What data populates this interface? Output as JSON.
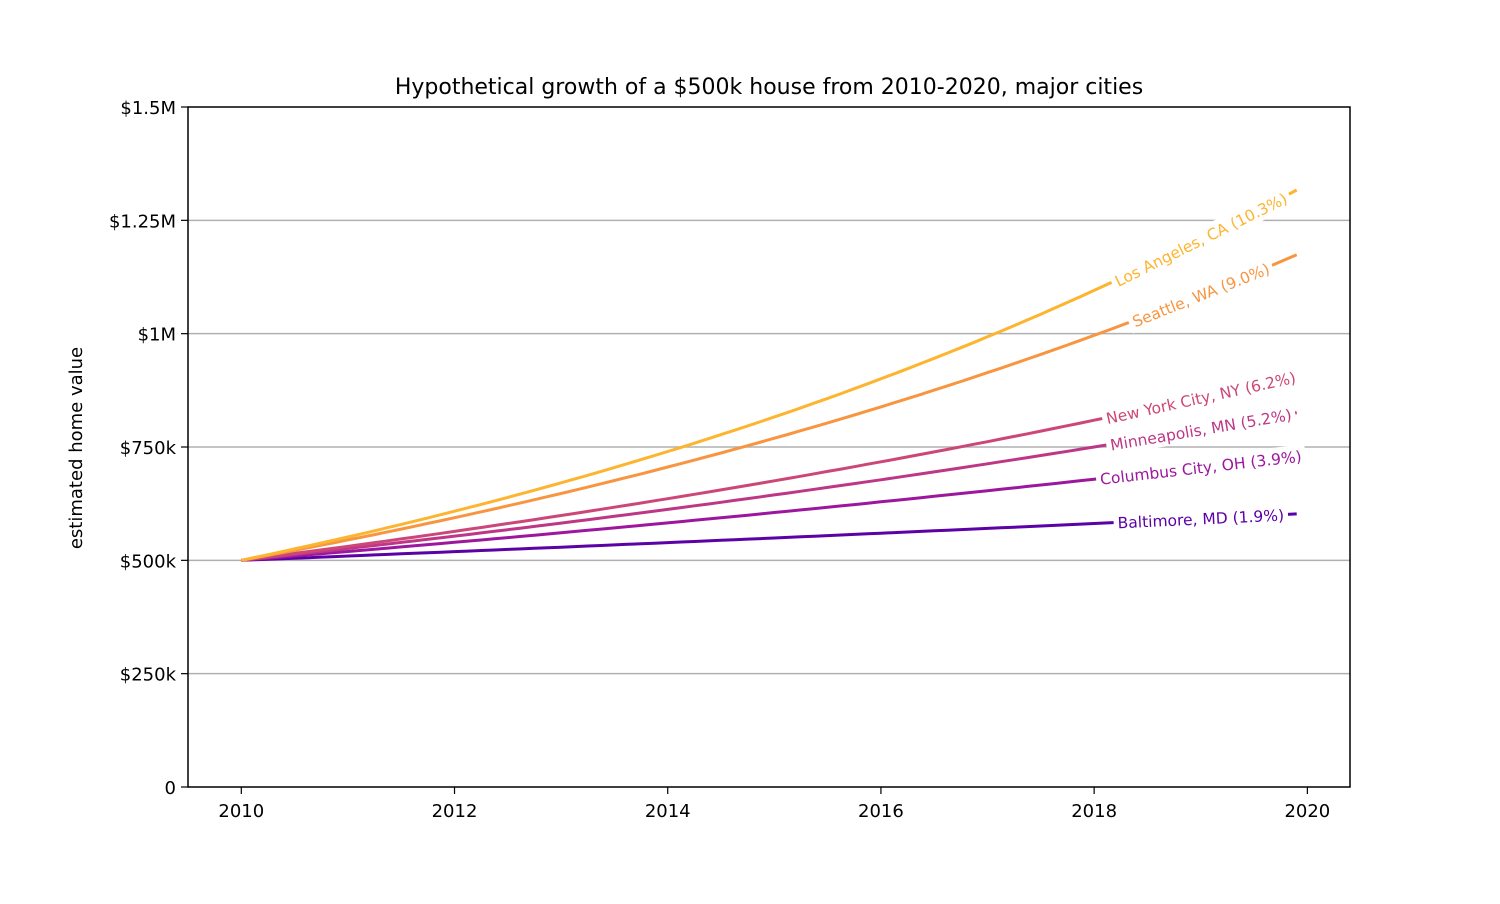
{
  "chart_data": {
    "type": "line",
    "title": "Hypothetical growth of a $500k house from 2010-2020, major cities",
    "xlabel": "",
    "ylabel": "estimated home value",
    "xlim": [
      2009.5,
      2020.4
    ],
    "ylim": [
      0,
      1500000
    ],
    "x_ticks": [
      2010,
      2012,
      2014,
      2016,
      2018,
      2020
    ],
    "x_tick_labels": [
      "2010",
      "2012",
      "2014",
      "2016",
      "2018",
      "2020"
    ],
    "y_ticks": [
      0,
      250000,
      500000,
      750000,
      1000000,
      1250000,
      1500000
    ],
    "y_tick_labels": [
      "0",
      "$250k",
      "$500k",
      "$750k",
      "$1M",
      "$1.25M",
      "$1.5M"
    ],
    "grid": "horizontal",
    "x": [
      2010,
      2011,
      2012,
      2013,
      2014,
      2015,
      2016,
      2017,
      2018,
      2019,
      2019.9
    ],
    "series": [
      {
        "name": "Baltimore, MD (1.9%)",
        "color": "#5c01a6",
        "values": [
          500000,
          509500,
          519181,
          529045,
          539097,
          549339,
          559777,
          570412,
          581250,
          592294,
          602375
        ]
      },
      {
        "name": "Columbus City, OH (3.9%)",
        "color": "#9c179e",
        "values": [
          500000,
          519500,
          539761,
          560811,
          582683,
          605408,
          629019,
          653550,
          679039,
          705521,
          730247
        ]
      },
      {
        "name": "Minneapolis, MN (5.2%)",
        "color": "#bd3786",
        "values": [
          500000,
          526000,
          553352,
          582126,
          612396,
          644241,
          677741,
          712984,
          750059,
          789062,
          825786
        ]
      },
      {
        "name": "New York City, NY (6.2%)",
        "color": "#cc4778",
        "values": [
          500000,
          531000,
          563922,
          598885,
          636016,
          675449,
          717327,
          761801,
          809033,
          859193,
          907075
        ]
      },
      {
        "name": "Seattle, WA (9.0%)",
        "color": "#f89540",
        "values": [
          500000,
          545000,
          594050,
          647515,
          705791,
          769312,
          838550,
          914019,
          996281,
          1085946,
          1174100
        ]
      },
      {
        "name": "Los Angeles, CA (10.3%)",
        "color": "#fdb42f",
        "values": [
          500000,
          551500,
          608305,
          670960,
          740069,
          816296,
          900375,
          993114,
          1095405,
          1208232,
          1317000
        ]
      }
    ],
    "line_label_position": "inline near x=2018-2020"
  }
}
